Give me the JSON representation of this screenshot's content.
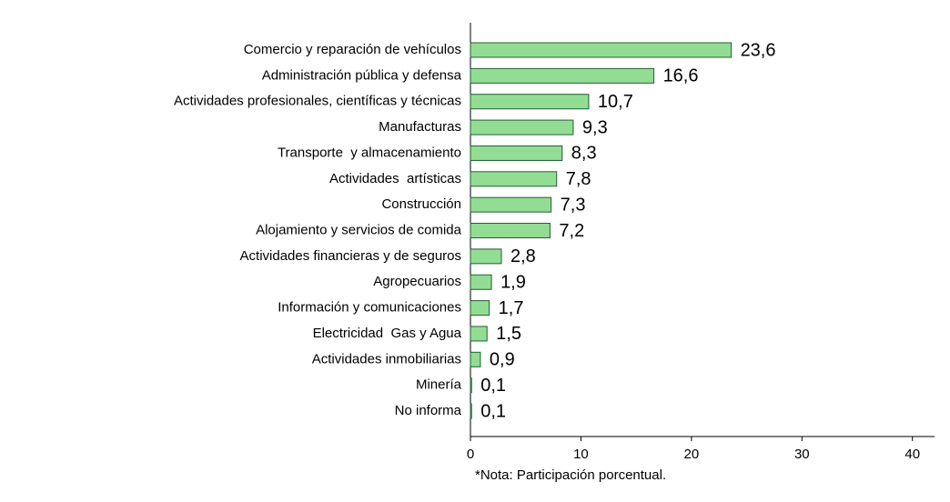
{
  "chart_data": {
    "type": "bar",
    "orientation": "horizontal",
    "note": "*Nota: Participación porcentual.",
    "categories": [
      "Comercio y reparación de vehículos",
      "Administración pública y defensa",
      "Actividades profesionales, científicas y técnicas",
      "Manufacturas",
      "Transporte  y almacenamiento",
      "Actividades  artísticas",
      "Construcción",
      "Alojamiento y servicios de comida",
      "Actividades financieras y de seguros",
      "Agropecuarios",
      "Información y comunicaciones",
      "Electricidad  Gas y Agua",
      "Actividades inmobiliarias",
      "Minería",
      "No informa"
    ],
    "values": [
      23.6,
      16.6,
      10.7,
      9.3,
      8.3,
      7.8,
      7.3,
      7.2,
      2.8,
      1.9,
      1.7,
      1.5,
      0.9,
      0.1,
      0.1
    ],
    "value_labels": [
      "23,6",
      "16,6",
      "10,7",
      "9,3",
      "8,3",
      "7,8",
      "7,3",
      "7,2",
      "2,8",
      "1,9",
      "1,7",
      "1,5",
      "0,9",
      "0,1",
      "0,1"
    ],
    "color": "#93dc93",
    "xlim": [
      0,
      42
    ],
    "xticks": [
      0,
      10,
      20,
      30,
      40
    ]
  }
}
